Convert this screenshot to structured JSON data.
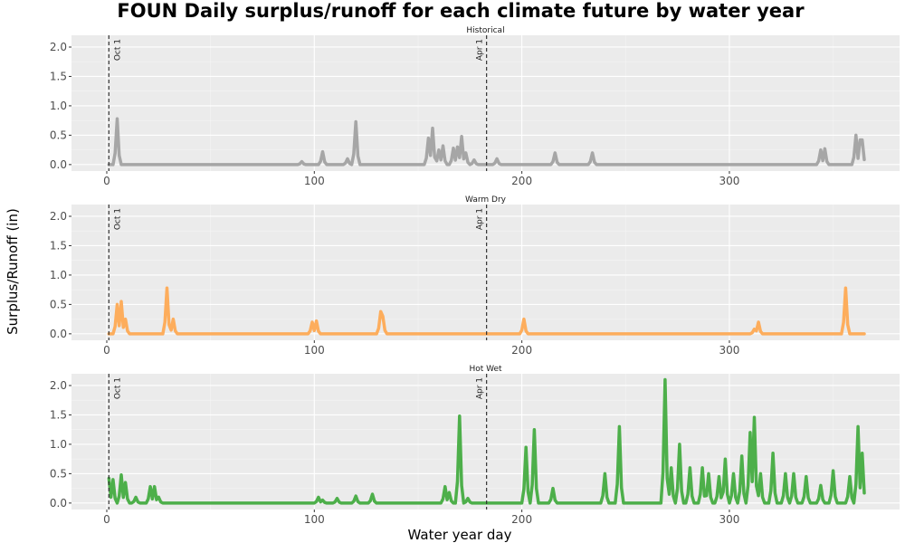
{
  "chart_data": {
    "type": "line",
    "title": "FOUN Daily surplus/runoff for each climate future by water year",
    "xlabel": "Water year day",
    "ylabel": "Surplus/Runoff (in)",
    "xlim": [
      -17,
      382
    ],
    "ylim": [
      -0.11,
      2.2
    ],
    "x_ticks": [
      0,
      100,
      200,
      300
    ],
    "y_ticks": [
      0.0,
      0.5,
      1.0,
      1.5,
      2.0
    ],
    "y_tick_labels": [
      "0.0",
      "0.5",
      "1.0",
      "1.5",
      "2.0"
    ],
    "reference_lines": [
      {
        "x": 1,
        "label": "Oct 1"
      },
      {
        "x": 183,
        "label": "Apr 1"
      }
    ],
    "grid": true,
    "panels": [
      {
        "strip": "Historical",
        "color": "#a6a6a6",
        "peaks": [
          [
            5,
            0.78
          ],
          [
            94,
            0.05
          ],
          [
            104,
            0.22
          ],
          [
            116,
            0.1
          ],
          [
            120,
            0.73
          ],
          [
            155,
            0.45
          ],
          [
            157,
            0.62
          ],
          [
            160,
            0.25
          ],
          [
            162,
            0.32
          ],
          [
            167,
            0.28
          ],
          [
            169,
            0.3
          ],
          [
            171,
            0.48
          ],
          [
            173,
            0.2
          ],
          [
            177,
            0.08
          ],
          [
            188,
            0.1
          ],
          [
            216,
            0.2
          ],
          [
            234,
            0.2
          ],
          [
            344,
            0.25
          ],
          [
            346,
            0.27
          ],
          [
            361,
            0.5
          ],
          [
            363,
            0.42
          ],
          [
            364,
            0.42
          ]
        ]
      },
      {
        "strip": "Warm Dry",
        "color": "#fdad5c",
        "peaks": [
          [
            5,
            0.5
          ],
          [
            7,
            0.55
          ],
          [
            9,
            0.25
          ],
          [
            29,
            0.78
          ],
          [
            32,
            0.25
          ],
          [
            99,
            0.2
          ],
          [
            101,
            0.22
          ],
          [
            132,
            0.38
          ],
          [
            133,
            0.3
          ],
          [
            201,
            0.25
          ],
          [
            312,
            0.08
          ],
          [
            314,
            0.2
          ],
          [
            356,
            0.78
          ]
        ]
      },
      {
        "strip": "Hot Wet",
        "color": "#4daf4a",
        "peaks": [
          [
            1,
            0.42
          ],
          [
            3,
            0.4
          ],
          [
            7,
            0.48
          ],
          [
            9,
            0.35
          ],
          [
            14,
            0.1
          ],
          [
            21,
            0.28
          ],
          [
            23,
            0.28
          ],
          [
            25,
            0.1
          ],
          [
            102,
            0.1
          ],
          [
            104,
            0.05
          ],
          [
            111,
            0.08
          ],
          [
            120,
            0.12
          ],
          [
            128,
            0.15
          ],
          [
            163,
            0.28
          ],
          [
            165,
            0.18
          ],
          [
            170,
            1.48
          ],
          [
            174,
            0.08
          ],
          [
            202,
            0.95
          ],
          [
            206,
            1.25
          ],
          [
            215,
            0.25
          ],
          [
            240,
            0.5
          ],
          [
            247,
            1.3
          ],
          [
            269,
            2.1
          ],
          [
            272,
            0.6
          ],
          [
            276,
            1.0
          ],
          [
            281,
            0.6
          ],
          [
            287,
            0.6
          ],
          [
            290,
            0.5
          ],
          [
            295,
            0.45
          ],
          [
            298,
            0.75
          ],
          [
            302,
            0.5
          ],
          [
            306,
            0.8
          ],
          [
            310,
            1.2
          ],
          [
            312,
            1.46
          ],
          [
            315,
            0.5
          ],
          [
            321,
            0.85
          ],
          [
            327,
            0.5
          ],
          [
            331,
            0.5
          ],
          [
            337,
            0.45
          ],
          [
            344,
            0.3
          ],
          [
            350,
            0.55
          ],
          [
            358,
            0.45
          ],
          [
            362,
            1.3
          ],
          [
            364,
            0.85
          ],
          [
            366,
            0.45
          ]
        ]
      }
    ]
  }
}
